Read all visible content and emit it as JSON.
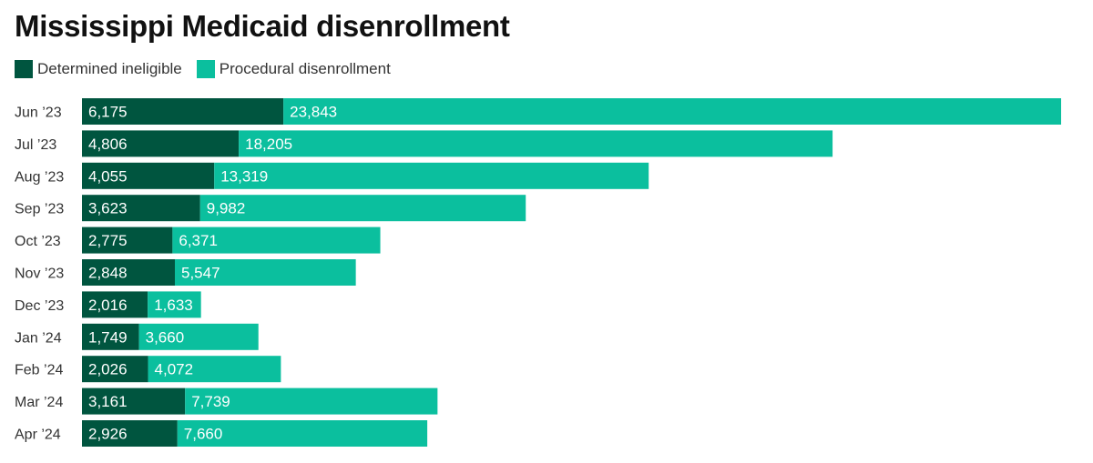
{
  "chart_data": {
    "type": "bar",
    "orientation": "horizontal",
    "stacked": true,
    "title": "Mississippi Medicaid disenrollment",
    "legend_position": "top-left",
    "grid": false,
    "categories": [
      "Jun ’23",
      "Jul ’23",
      "Aug ’23",
      "Sep ’23",
      "Oct ’23",
      "Nov ’23",
      "Dec ’23",
      "Jan ’24",
      "Feb ’24",
      "Mar ’24",
      "Apr ’24"
    ],
    "series": [
      {
        "name": "Determined ineligible",
        "color": "#00553f",
        "values": [
          6175,
          4806,
          4055,
          3623,
          2775,
          2848,
          2016,
          1749,
          2026,
          3161,
          2926
        ],
        "labels": [
          "6,175",
          "4,806",
          "4,055",
          "3,623",
          "2,775",
          "2,848",
          "2,016",
          "1,749",
          "2,026",
          "3,161",
          "2,926"
        ]
      },
      {
        "name": "Procedural disenrollment",
        "color": "#0bbf9e",
        "values": [
          23843,
          18205,
          13319,
          9982,
          6371,
          5547,
          1633,
          3660,
          4072,
          7739,
          7660
        ],
        "labels": [
          "23,843",
          "18,205",
          "13,319",
          "9,982",
          "6,371",
          "5,547",
          "1,633",
          "3,660",
          "4,072",
          "7,739",
          "7,660"
        ]
      }
    ],
    "xlim": [
      0,
      30018
    ]
  }
}
